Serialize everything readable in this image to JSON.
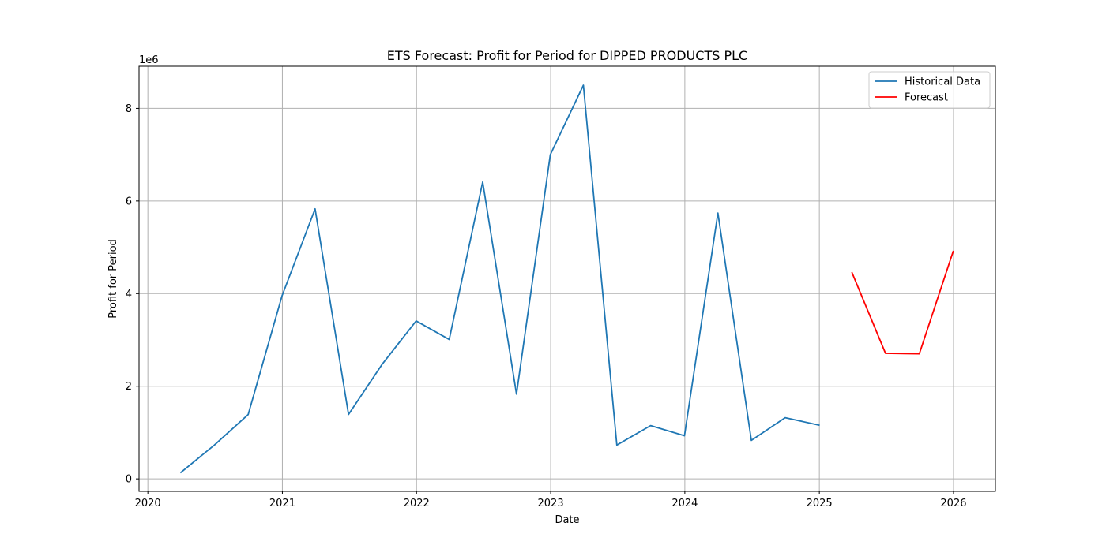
{
  "chart_data": {
    "type": "line",
    "title": "ETS Forecast: Profit for Period for DIPPED PRODUCTS PLC",
    "xlabel": "Date",
    "ylabel": "Profit for Period",
    "y_offset_label": "1e6",
    "y_multiplier": 1000000,
    "xlim": [
      "2019-12-08",
      "2026-04-25"
    ],
    "ylim": [
      -270000,
      8910000
    ],
    "x_ticks": [
      "2020-01-01",
      "2021-01-01",
      "2022-01-01",
      "2023-01-01",
      "2024-01-01",
      "2025-01-01",
      "2026-01-01"
    ],
    "x_tick_labels": [
      "2020",
      "2021",
      "2022",
      "2023",
      "2024",
      "2025",
      "2026"
    ],
    "y_ticks": [
      0,
      2000000,
      4000000,
      6000000,
      8000000
    ],
    "y_tick_labels": [
      "0",
      "2",
      "4",
      "6",
      "8"
    ],
    "grid": true,
    "legend_position": "top-right",
    "series": [
      {
        "name": "Historical Data",
        "color": "#1f77b4",
        "x": [
          "2020-03-31",
          "2020-06-30",
          "2020-09-30",
          "2020-12-31",
          "2021-03-31",
          "2021-06-30",
          "2021-09-30",
          "2021-12-31",
          "2022-03-31",
          "2022-06-30",
          "2022-09-30",
          "2022-12-31",
          "2023-03-31",
          "2023-06-30",
          "2023-09-30",
          "2023-12-31",
          "2024-03-31",
          "2024-06-30",
          "2024-09-30",
          "2024-12-31"
        ],
        "y": [
          140000,
          730000,
          1390000,
          3950000,
          5830000,
          1390000,
          2480000,
          3410000,
          3010000,
          6410000,
          1830000,
          7000000,
          8500000,
          730000,
          1150000,
          930000,
          5740000,
          830000,
          1320000,
          1160000
        ]
      },
      {
        "name": "Forecast",
        "color": "#ff0000",
        "x": [
          "2025-03-31",
          "2025-06-30",
          "2025-09-30",
          "2025-12-31"
        ],
        "y": [
          4450000,
          2710000,
          2700000,
          4910000
        ]
      }
    ]
  }
}
